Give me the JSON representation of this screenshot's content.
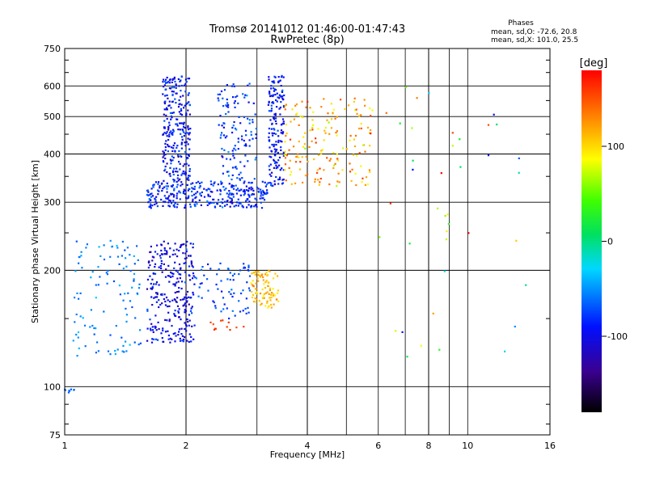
{
  "chart_data": {
    "type": "scatter",
    "title": "Tromsø 20141012 01:46:00-01:47:43",
    "subtitle": "RwPretec (8p)",
    "xlabel": "Frequency [MHz]",
    "ylabel": "Stationary phase Virtual Height [km]",
    "x_scale": "log2",
    "y_scale": "log",
    "xlim": [
      1,
      16
    ],
    "ylim": [
      75,
      750
    ],
    "x_ticks": [
      1,
      2,
      4,
      6,
      8,
      10,
      16
    ],
    "x_tick_labels": [
      "1",
      "2",
      "4",
      "6",
      "8",
      "10",
      "16"
    ],
    "y_ticks": [
      75,
      100,
      200,
      300,
      400,
      500,
      600,
      750
    ],
    "y_tick_labels": [
      "75",
      "100",
      "200",
      "300",
      "400",
      "500",
      "600",
      "750"
    ],
    "grid": true,
    "stats": {
      "heading": "Phases",
      "line_o": "mean, sd,O: -72.6, 20.8",
      "line_x": "mean, sd,X: 101.0, 25.5"
    },
    "colorbar": {
      "label": "[deg]",
      "range": [
        -180,
        180
      ],
      "ticks": [
        100,
        0,
        -100
      ],
      "tick_labels": [
        "100",
        "0",
        "-100"
      ],
      "colormap": "rainbow"
    },
    "clusters": [
      {
        "name": "lower-blue",
        "x_range": [
          1.6,
          2.1
        ],
        "y_range": [
          130,
          240
        ],
        "phase_mean": -100,
        "phase_sd": 15,
        "count": 280
      },
      {
        "name": "lower-cyan",
        "x_range": [
          1.05,
          1.55
        ],
        "y_range": [
          120,
          240
        ],
        "phase_mean": -55,
        "phase_sd": 10,
        "count": 110
      },
      {
        "name": "lower-mid",
        "x_range": [
          2.1,
          2.9
        ],
        "y_range": [
          150,
          210
        ],
        "phase_mean": -75,
        "phase_sd": 12,
        "count": 70
      },
      {
        "name": "lower-x-yellow",
        "x_range": [
          2.9,
          3.4
        ],
        "y_range": [
          160,
          200
        ],
        "phase_mean": 110,
        "phase_sd": 12,
        "count": 90
      },
      {
        "name": "lower-orange",
        "x_range": [
          2.3,
          2.8
        ],
        "y_range": [
          140,
          150
        ],
        "phase_mean": 155,
        "phase_sd": 8,
        "count": 12
      },
      {
        "name": "f-base-blue",
        "x_range": [
          1.6,
          3.2
        ],
        "y_range": [
          290,
          340
        ],
        "phase_mean": -85,
        "phase_sd": 15,
        "count": 320
      },
      {
        "name": "f-column-1",
        "x_range": [
          1.75,
          2.05
        ],
        "y_range": [
          340,
          640
        ],
        "phase_mean": -90,
        "phase_sd": 15,
        "count": 260
      },
      {
        "name": "f-column-2",
        "x_range": [
          2.4,
          3.0
        ],
        "y_range": [
          340,
          620
        ],
        "phase_mean": -80,
        "phase_sd": 15,
        "count": 120
      },
      {
        "name": "f-column-3",
        "x_range": [
          3.2,
          3.5
        ],
        "y_range": [
          330,
          640
        ],
        "phase_mean": -90,
        "phase_sd": 12,
        "count": 170
      },
      {
        "name": "f-x-trace",
        "x_range": [
          3.5,
          5.8
        ],
        "y_range": [
          330,
          560
        ],
        "phase_mean": 115,
        "phase_sd": 25,
        "count": 170
      },
      {
        "name": "sparse",
        "x_range": [
          6.0,
          14.0
        ],
        "y_range": [
          100,
          650
        ],
        "phase_mean": 30,
        "phase_sd": 110,
        "count": 40
      },
      {
        "name": "low-blue",
        "x_range": [
          1.0,
          1.06
        ],
        "y_range": [
          96,
          99
        ],
        "phase_mean": -60,
        "phase_sd": 6,
        "count": 8
      }
    ]
  }
}
